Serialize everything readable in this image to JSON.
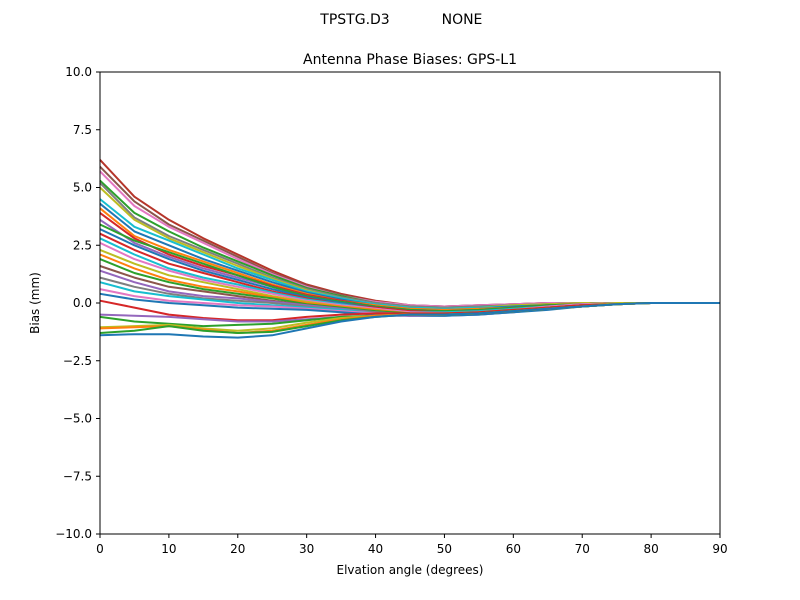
{
  "header": {
    "antenna": "TPSTG.D3",
    "radome": "NONE"
  },
  "chart_data": {
    "type": "line",
    "title": "Antenna Phase Biases: GPS-L1",
    "xlabel": "Elvation angle (degrees)",
    "ylabel": "Bias (mm)",
    "xlim": [
      0,
      90
    ],
    "ylim": [
      -10,
      10
    ],
    "xticks": [
      0,
      10,
      20,
      30,
      40,
      50,
      60,
      70,
      80,
      90
    ],
    "yticks": [
      -10.0,
      -7.5,
      -5.0,
      -2.5,
      0.0,
      2.5,
      5.0,
      7.5,
      10.0
    ],
    "xtick_labels": [
      "0",
      "10",
      "20",
      "30",
      "40",
      "50",
      "60",
      "70",
      "80",
      "90"
    ],
    "ytick_labels": [
      "−10.0",
      "−7.5",
      "−5.0",
      "−2.5",
      "0.0",
      "2.5",
      "5.0",
      "7.5",
      "10.0"
    ],
    "grid": false,
    "legend": "none",
    "x": [
      0,
      5,
      10,
      15,
      20,
      25,
      30,
      35,
      40,
      45,
      50,
      55,
      60,
      65,
      70,
      75,
      80,
      85,
      90
    ],
    "series": [
      {
        "values": [
          6.2,
          4.6,
          3.6,
          2.8,
          2.1,
          1.4,
          0.8,
          0.4,
          0.1,
          -0.1,
          -0.15,
          -0.1,
          -0.05,
          0.0,
          0.0,
          0.0,
          0.0,
          0.0,
          0.0
        ],
        "color": "#b5352a"
      },
      {
        "values": [
          5.9,
          4.4,
          3.4,
          2.7,
          2.0,
          1.3,
          0.75,
          0.35,
          0.05,
          -0.1,
          -0.15,
          -0.1,
          -0.05,
          0.0,
          0.0,
          0.0,
          0.0,
          0.0,
          0.0
        ],
        "color": "#8c564b"
      },
      {
        "values": [
          5.7,
          4.2,
          3.3,
          2.6,
          1.9,
          1.25,
          0.7,
          0.3,
          0.05,
          -0.1,
          -0.15,
          -0.1,
          -0.05,
          0.0,
          0.0,
          0.0,
          0.0,
          0.0,
          0.0
        ],
        "color": "#e377c2"
      },
      {
        "values": [
          5.3,
          3.9,
          3.1,
          2.4,
          1.8,
          1.2,
          0.65,
          0.3,
          0.0,
          -0.15,
          -0.2,
          -0.15,
          -0.1,
          -0.05,
          0.0,
          0.0,
          0.0,
          0.0,
          0.0
        ],
        "color": "#2ca02c"
      },
      {
        "values": [
          5.2,
          3.7,
          2.9,
          2.3,
          1.7,
          1.1,
          0.6,
          0.25,
          0.0,
          -0.15,
          -0.2,
          -0.15,
          -0.1,
          -0.05,
          0.0,
          0.0,
          0.0,
          0.0,
          0.0
        ],
        "color": "#7f7f7f"
      },
      {
        "values": [
          5.0,
          3.6,
          2.8,
          2.2,
          1.6,
          1.05,
          0.55,
          0.2,
          -0.05,
          -0.2,
          -0.25,
          -0.2,
          -0.1,
          -0.05,
          0.0,
          0.0,
          0.0,
          0.0,
          0.0
        ],
        "color": "#bcbd22"
      },
      {
        "values": [
          4.5,
          3.3,
          2.7,
          2.1,
          1.5,
          1.0,
          0.5,
          0.2,
          -0.05,
          -0.2,
          -0.25,
          -0.2,
          -0.15,
          -0.1,
          -0.05,
          0.0,
          0.0,
          0.0,
          0.0
        ],
        "color": "#17becf"
      },
      {
        "values": [
          4.3,
          3.1,
          2.5,
          1.9,
          1.4,
          0.9,
          0.45,
          0.15,
          -0.1,
          -0.25,
          -0.3,
          -0.25,
          -0.15,
          -0.1,
          -0.05,
          0.0,
          0.0,
          0.0,
          0.0
        ],
        "color": "#1f77b4"
      },
      {
        "values": [
          4.1,
          2.9,
          2.3,
          1.8,
          1.3,
          0.8,
          0.4,
          0.1,
          -0.1,
          -0.25,
          -0.3,
          -0.25,
          -0.2,
          -0.1,
          -0.05,
          0.0,
          0.0,
          0.0,
          0.0
        ],
        "color": "#ff7f0e"
      },
      {
        "values": [
          3.9,
          2.8,
          2.1,
          1.6,
          1.2,
          0.75,
          0.35,
          0.1,
          -0.15,
          -0.3,
          -0.35,
          -0.3,
          -0.2,
          -0.1,
          -0.05,
          0.0,
          0.0,
          0.0,
          0.0
        ],
        "color": "#d62728"
      },
      {
        "values": [
          3.6,
          2.6,
          2.0,
          1.5,
          1.1,
          0.7,
          0.3,
          0.05,
          -0.15,
          -0.3,
          -0.35,
          -0.3,
          -0.2,
          -0.15,
          -0.05,
          0.0,
          0.0,
          0.0,
          0.0
        ],
        "color": "#9467bd"
      },
      {
        "values": [
          3.4,
          2.7,
          2.2,
          1.7,
          1.2,
          0.7,
          0.3,
          0.05,
          -0.15,
          -0.3,
          -0.35,
          -0.3,
          -0.2,
          -0.1,
          -0.05,
          0.0,
          0.0,
          0.0,
          0.0
        ],
        "color": "#2ca02c"
      },
      {
        "values": [
          3.2,
          2.5,
          1.9,
          1.4,
          1.0,
          0.6,
          0.25,
          0.0,
          -0.2,
          -0.35,
          -0.4,
          -0.35,
          -0.25,
          -0.15,
          -0.05,
          0.0,
          0.0,
          0.0,
          0.0
        ],
        "color": "#1f77b4"
      },
      {
        "values": [
          3.0,
          2.3,
          1.7,
          1.3,
          0.9,
          0.5,
          0.2,
          -0.05,
          -0.2,
          -0.35,
          -0.4,
          -0.35,
          -0.25,
          -0.15,
          -0.05,
          0.0,
          0.0,
          0.0,
          0.0
        ],
        "color": "#d62728"
      },
      {
        "values": [
          2.8,
          2.1,
          1.5,
          1.1,
          0.8,
          0.45,
          0.15,
          -0.05,
          -0.25,
          -0.4,
          -0.4,
          -0.35,
          -0.25,
          -0.15,
          -0.05,
          0.0,
          0.0,
          0.0,
          0.0
        ],
        "color": "#17becf"
      },
      {
        "values": [
          2.6,
          1.9,
          1.4,
          1.0,
          0.7,
          0.4,
          0.1,
          -0.1,
          -0.25,
          -0.4,
          -0.45,
          -0.4,
          -0.3,
          -0.15,
          -0.05,
          0.0,
          0.0,
          0.0,
          0.0
        ],
        "color": "#e377c2"
      },
      {
        "values": [
          2.3,
          1.7,
          1.2,
          0.9,
          0.6,
          0.3,
          0.05,
          -0.15,
          -0.3,
          -0.45,
          -0.45,
          -0.4,
          -0.3,
          -0.2,
          -0.1,
          0.0,
          0.0,
          0.0,
          0.0
        ],
        "color": "#bcbd22"
      },
      {
        "values": [
          2.1,
          1.5,
          1.0,
          0.7,
          0.5,
          0.25,
          0.0,
          -0.15,
          -0.3,
          -0.45,
          -0.5,
          -0.4,
          -0.3,
          -0.2,
          -0.1,
          -0.05,
          0.0,
          0.0,
          0.0
        ],
        "color": "#ff7f0e"
      },
      {
        "values": [
          1.9,
          1.3,
          0.9,
          0.6,
          0.4,
          0.2,
          -0.05,
          -0.2,
          -0.35,
          -0.45,
          -0.5,
          -0.45,
          -0.35,
          -0.2,
          -0.1,
          -0.05,
          0.0,
          0.0,
          0.0
        ],
        "color": "#2ca02c"
      },
      {
        "values": [
          1.6,
          1.1,
          0.7,
          0.5,
          0.3,
          0.1,
          -0.1,
          -0.25,
          -0.4,
          -0.5,
          -0.5,
          -0.45,
          -0.35,
          -0.2,
          -0.1,
          -0.05,
          0.0,
          0.0,
          0.0
        ],
        "color": "#8c564b"
      },
      {
        "values": [
          1.4,
          0.9,
          0.5,
          0.3,
          0.2,
          0.05,
          -0.1,
          -0.25,
          -0.4,
          -0.5,
          -0.5,
          -0.45,
          -0.35,
          -0.25,
          -0.1,
          -0.05,
          0.0,
          0.0,
          0.0
        ],
        "color": "#9467bd"
      },
      {
        "values": [
          1.1,
          0.7,
          0.4,
          0.2,
          0.1,
          0.0,
          -0.15,
          -0.3,
          -0.4,
          -0.5,
          -0.55,
          -0.45,
          -0.35,
          -0.25,
          -0.15,
          -0.05,
          0.0,
          0.0,
          0.0
        ],
        "color": "#7f7f7f"
      },
      {
        "values": [
          0.9,
          0.5,
          0.3,
          0.15,
          0.0,
          -0.1,
          -0.2,
          -0.3,
          -0.45,
          -0.55,
          -0.55,
          -0.5,
          -0.4,
          -0.25,
          -0.15,
          -0.05,
          0.0,
          0.0,
          0.0
        ],
        "color": "#17becf"
      },
      {
        "values": [
          0.6,
          0.3,
          0.1,
          0.0,
          -0.1,
          -0.15,
          -0.25,
          -0.35,
          -0.45,
          -0.55,
          -0.55,
          -0.5,
          -0.4,
          -0.25,
          -0.15,
          -0.05,
          0.0,
          0.0,
          0.0
        ],
        "color": "#e377c2"
      },
      {
        "values": [
          0.4,
          0.15,
          0.0,
          -0.1,
          -0.2,
          -0.25,
          -0.3,
          -0.4,
          -0.5,
          -0.55,
          -0.55,
          -0.5,
          -0.4,
          -0.3,
          -0.15,
          -0.05,
          0.0,
          0.0,
          0.0
        ],
        "color": "#1f77b4"
      },
      {
        "values": [
          0.1,
          -0.2,
          -0.5,
          -0.65,
          -0.75,
          -0.75,
          -0.6,
          -0.5,
          -0.45,
          -0.45,
          -0.45,
          -0.4,
          -0.3,
          -0.2,
          -0.1,
          -0.05,
          0.0,
          0.0,
          0.0
        ],
        "color": "#d62728"
      },
      {
        "values": [
          -0.5,
          -0.55,
          -0.6,
          -0.7,
          -0.8,
          -0.8,
          -0.7,
          -0.6,
          -0.55,
          -0.55,
          -0.5,
          -0.45,
          -0.35,
          -0.25,
          -0.15,
          -0.05,
          0.0,
          0.0,
          0.0
        ],
        "color": "#9467bd"
      },
      {
        "values": [
          -0.6,
          -0.8,
          -0.9,
          -1.0,
          -0.95,
          -0.9,
          -0.75,
          -0.6,
          -0.55,
          -0.5,
          -0.5,
          -0.45,
          -0.35,
          -0.25,
          -0.15,
          -0.05,
          0.0,
          0.0,
          0.0
        ],
        "color": "#2ca02c"
      },
      {
        "values": [
          -1.05,
          -1.0,
          -0.95,
          -1.1,
          -1.2,
          -1.1,
          -0.85,
          -0.65,
          -0.55,
          -0.5,
          -0.5,
          -0.45,
          -0.35,
          -0.25,
          -0.15,
          -0.05,
          0.0,
          0.0,
          0.0
        ],
        "color": "#bcbd22"
      },
      {
        "values": [
          -1.1,
          -1.05,
          -1.0,
          -1.15,
          -1.3,
          -1.2,
          -0.95,
          -0.7,
          -0.55,
          -0.5,
          -0.5,
          -0.45,
          -0.35,
          -0.25,
          -0.15,
          -0.05,
          0.0,
          0.0,
          0.0
        ],
        "color": "#ff7f0e"
      },
      {
        "values": [
          -1.3,
          -1.2,
          -1.0,
          -1.2,
          -1.3,
          -1.25,
          -1.0,
          -0.75,
          -0.6,
          -0.5,
          -0.5,
          -0.45,
          -0.35,
          -0.25,
          -0.15,
          -0.05,
          0.0,
          0.0,
          0.0
        ],
        "color": "#2ca02c"
      },
      {
        "values": [
          -1.4,
          -1.35,
          -1.35,
          -1.45,
          -1.5,
          -1.4,
          -1.1,
          -0.8,
          -0.6,
          -0.5,
          -0.5,
          -0.45,
          -0.35,
          -0.25,
          -0.15,
          -0.05,
          0.0,
          0.0,
          0.0
        ],
        "color": "#1f77b4"
      }
    ]
  }
}
